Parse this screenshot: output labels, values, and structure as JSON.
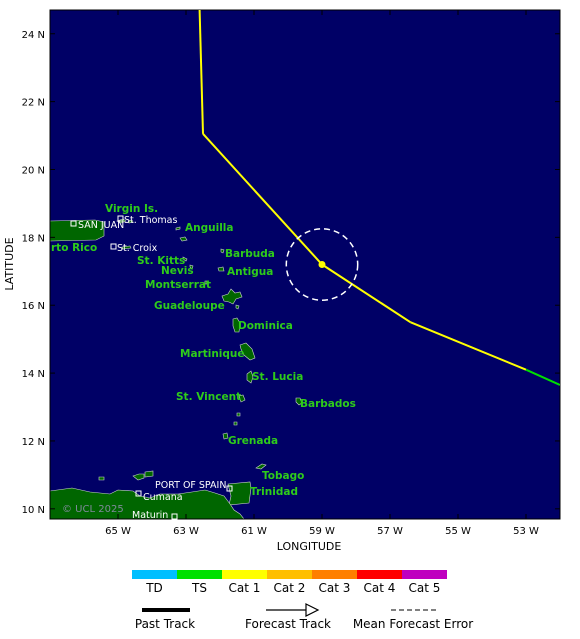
{
  "map": {
    "axes": {
      "xlabel": "LONGITUDE",
      "ylabel": "LATITUDE",
      "lon_range": [
        -67,
        -52
      ],
      "lat_range": [
        9.7,
        24.7
      ],
      "lon_ticks": [
        "65 W",
        "63 W",
        "61 W",
        "59 W",
        "57 W",
        "55 W",
        "53 W"
      ],
      "lat_ticks": [
        "10 N",
        "12 N",
        "14 N",
        "16 N",
        "18 N",
        "20 N",
        "22 N",
        "24 N"
      ]
    },
    "colors": {
      "ocean": "#000066",
      "land": "#006600",
      "coast": "#cfd6cf",
      "label": "#2ecc1a"
    },
    "islands": [
      "Virgin Is.",
      "Anguilla",
      "Barbuda",
      "St. Kitts",
      "Nevis",
      "Antigua",
      "Montserrat",
      "Guadeloupe",
      "Dominica",
      "Martinique",
      "St. Lucia",
      "St. Vincent",
      "Barbados",
      "Grenada",
      "Tobago",
      "Trinidad",
      "rto Rico"
    ],
    "cities": [
      "SAN JUAN",
      "St. Thomas",
      "St. Croix",
      "PORT OF SPAIN",
      "Cumana",
      "Maturin"
    ],
    "watermark": "© UCL 2025",
    "track": {
      "past": [],
      "forecast": [
        {
          "lon": -62.6,
          "lat": 24.7
        },
        {
          "lon": -62.5,
          "lat": 21.05
        },
        {
          "lon": -59.0,
          "lat": 17.2
        },
        {
          "lon": -56.4,
          "lat": 15.5
        },
        {
          "lon": -53.0,
          "lat": 14.1
        },
        {
          "lon": -52.0,
          "lat": 13.65
        }
      ],
      "segment_category": [
        "Cat 1",
        "Cat 1",
        "Cat 1",
        "Cat 1",
        "TS"
      ],
      "current_position": {
        "lon": -59.0,
        "lat": 17.2
      },
      "error_circle_radius_deg": 1.05
    }
  },
  "legend": {
    "categories": [
      {
        "label": "TD",
        "color": "#00bfff"
      },
      {
        "label": "TS",
        "color": "#00e000"
      },
      {
        "label": "Cat 1",
        "color": "#ffff00"
      },
      {
        "label": "Cat 2",
        "color": "#ffbf00"
      },
      {
        "label": "Cat 3",
        "color": "#ff7f00"
      },
      {
        "label": "Cat 4",
        "color": "#ff0000"
      },
      {
        "label": "Cat 5",
        "color": "#bf00bf"
      }
    ],
    "past_track": "Past Track",
    "forecast_track": "Forecast Track",
    "error": "Mean Forecast Error"
  }
}
